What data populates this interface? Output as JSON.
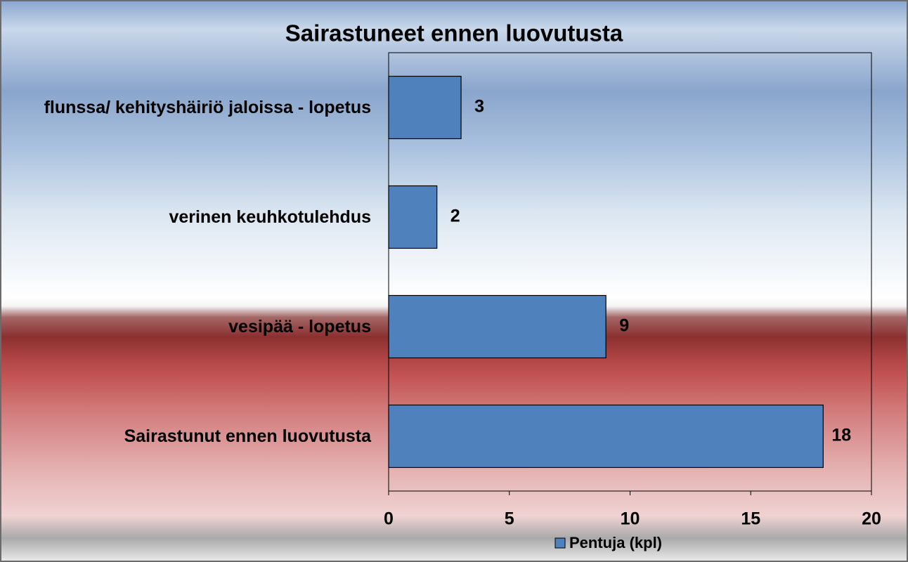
{
  "chart_data": {
    "type": "bar",
    "orientation": "horizontal",
    "title": "Sairastuneet ennen luovutusta",
    "categories": [
      "flunssa/ kehityshäiriö jaloissa - lopetus",
      "verinen keuhkotulehdus",
      "vesipää - lopetus",
      "Sairastunut ennen luovutusta"
    ],
    "series": [
      {
        "name": "Pentuja (kpl)",
        "color": "#4f81bd",
        "values": [
          3,
          2,
          9,
          18
        ]
      }
    ],
    "xlim": [
      0,
      20
    ],
    "xticks": [
      0,
      5,
      10,
      15,
      20
    ],
    "legend": "bottom"
  }
}
